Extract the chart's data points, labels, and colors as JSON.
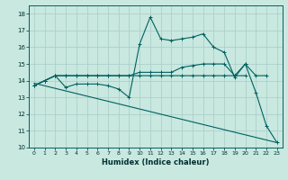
{
  "title": "",
  "xlabel": "Humidex (Indice chaleur)",
  "background_color": "#c8e8e0",
  "grid_color": "#a8ccc8",
  "line_color": "#006060",
  "xlim": [
    -0.5,
    23.5
  ],
  "ylim": [
    10,
    18.5
  ],
  "yticks": [
    10,
    11,
    12,
    13,
    14,
    15,
    16,
    17,
    18
  ],
  "xticks": [
    0,
    1,
    2,
    3,
    4,
    5,
    6,
    7,
    8,
    9,
    10,
    11,
    12,
    13,
    14,
    15,
    16,
    17,
    18,
    19,
    20,
    21,
    22,
    23
  ],
  "series": [
    {
      "x": [
        0,
        1,
        2,
        3,
        4,
        5,
        6,
        7,
        8,
        9,
        10,
        11,
        12,
        13,
        14,
        15,
        16,
        17,
        18,
        19,
        20,
        21,
        22,
        23
      ],
      "y": [
        13.7,
        14.0,
        14.3,
        13.6,
        13.8,
        13.8,
        13.8,
        13.7,
        13.5,
        13.0,
        16.2,
        17.8,
        16.5,
        16.4,
        16.5,
        16.6,
        16.8,
        16.0,
        15.7,
        14.2,
        15.0,
        13.3,
        11.3,
        10.3
      ]
    },
    {
      "x": [
        0,
        1,
        2,
        3,
        4,
        5,
        6,
        7,
        8,
        9,
        10,
        11,
        12,
        13,
        14,
        15,
        16,
        17,
        18,
        19,
        20,
        21,
        22
      ],
      "y": [
        13.7,
        14.0,
        14.3,
        14.3,
        14.3,
        14.3,
        14.3,
        14.3,
        14.3,
        14.3,
        14.5,
        14.5,
        14.5,
        14.5,
        14.8,
        14.9,
        15.0,
        15.0,
        15.0,
        14.3,
        15.0,
        14.3,
        14.3
      ]
    },
    {
      "x": [
        0,
        1,
        2,
        3,
        4,
        5,
        6,
        7,
        8,
        9,
        10,
        11,
        12,
        13,
        14,
        15,
        16,
        17,
        18,
        19,
        20
      ],
      "y": [
        13.7,
        14.0,
        14.3,
        14.3,
        14.3,
        14.3,
        14.3,
        14.3,
        14.3,
        14.3,
        14.3,
        14.3,
        14.3,
        14.3,
        14.3,
        14.3,
        14.3,
        14.3,
        14.3,
        14.3,
        14.3
      ]
    },
    {
      "x": [
        0,
        23
      ],
      "y": [
        13.85,
        10.3
      ]
    }
  ]
}
